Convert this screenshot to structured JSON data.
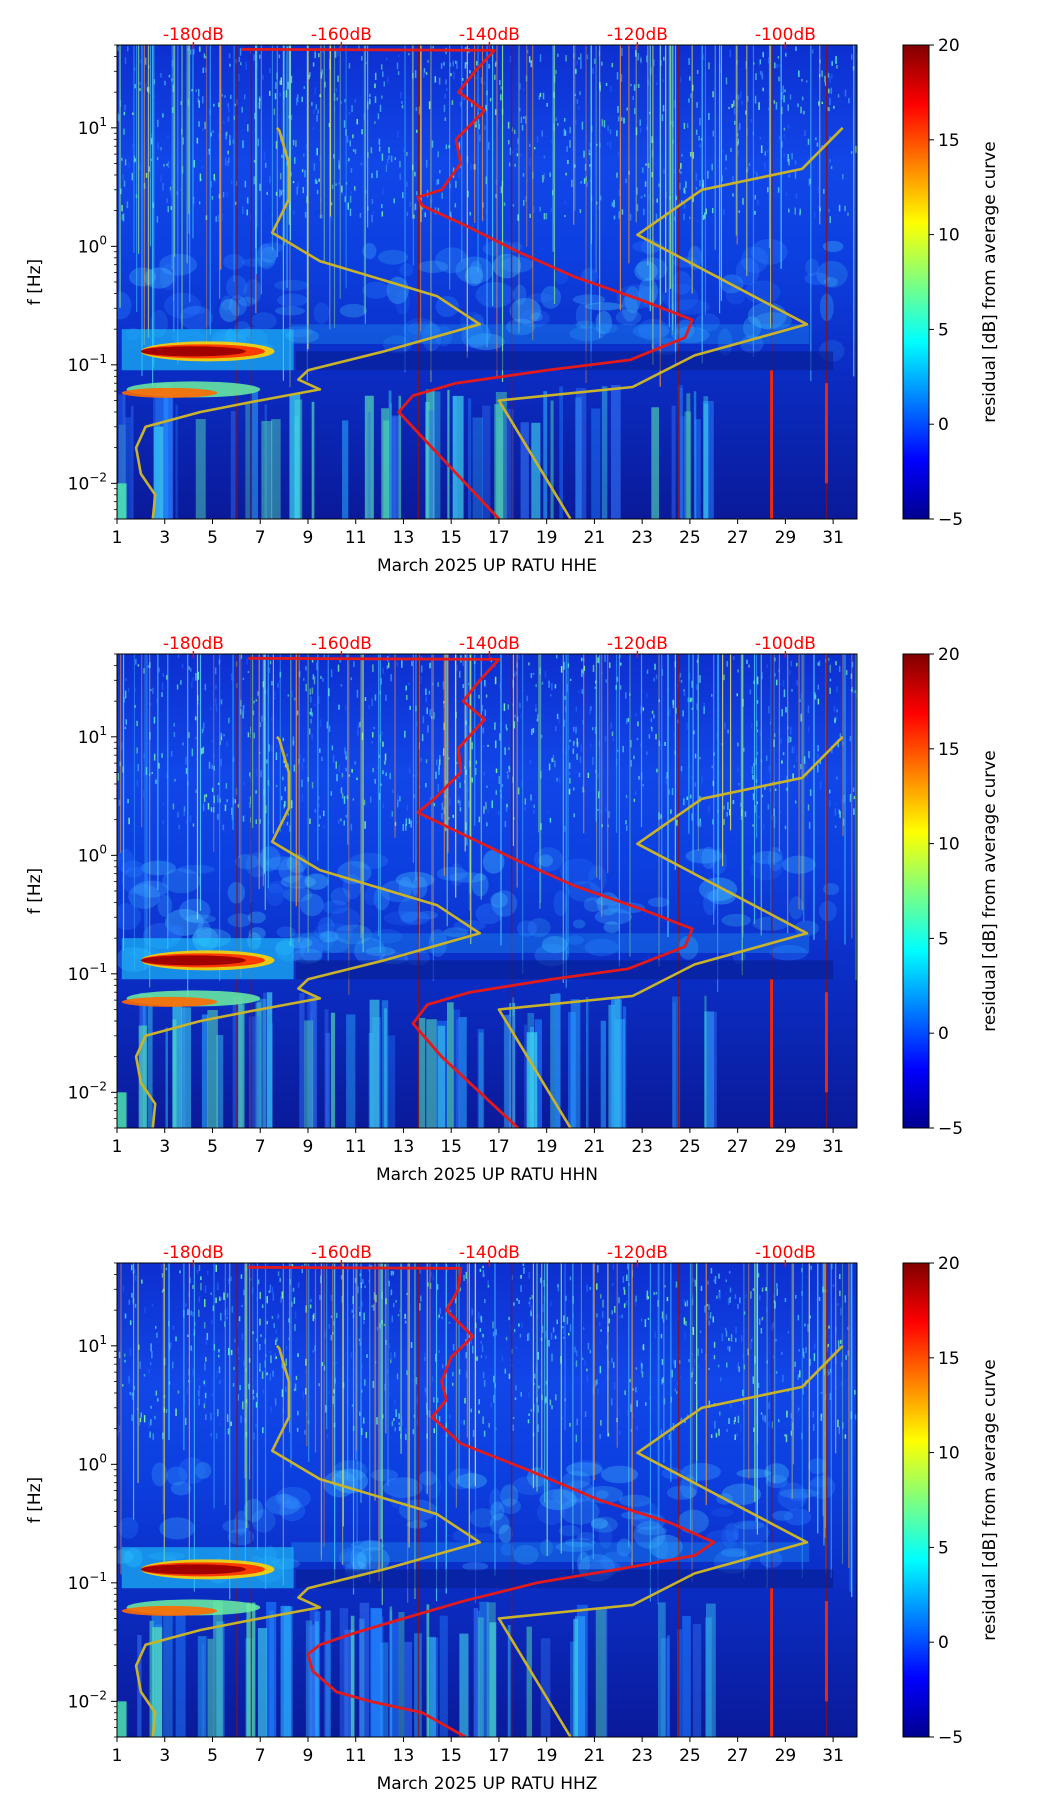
{
  "colors": {
    "cmap": [
      "#00008f",
      "#0000ff",
      "#007fff",
      "#00ffff",
      "#7fff7f",
      "#ffff00",
      "#ff7f00",
      "#ff0000",
      "#800000"
    ],
    "red_curve": "#e31a1c",
    "gold_curve": "#c9b32b",
    "db_label": "#ff0000"
  },
  "chart_data": [
    {
      "type": "heatmap",
      "station": "UP RATU",
      "channel": "HHE",
      "xlabel": "March 2025 UP RATU  HHE",
      "ylabel": "f [Hz]",
      "xlim": [
        1,
        32
      ],
      "ylim": [
        0.005,
        50
      ],
      "xticks": [
        "1",
        "3",
        "5",
        "7",
        "9",
        "11",
        "13",
        "15",
        "17",
        "19",
        "21",
        "23",
        "25",
        "27",
        "29",
        "31"
      ],
      "yticks": [
        {
          "value": 0.01,
          "base": "10",
          "exp": "−2"
        },
        {
          "value": 0.1,
          "base": "10",
          "exp": "−1"
        },
        {
          "value": 1,
          "base": "10",
          "exp": "0"
        },
        {
          "value": 10,
          "base": "10",
          "exp": "1"
        }
      ],
      "db_labels": [
        {
          "day": 4.2,
          "text": "-180dB"
        },
        {
          "day": 10.4,
          "text": "-160dB"
        },
        {
          "day": 16.6,
          "text": "-140dB"
        },
        {
          "day": 22.8,
          "text": "-120dB"
        },
        {
          "day": 29.0,
          "text": "-100dB"
        }
      ],
      "colorbar": {
        "label": "residual [dB] from average curve",
        "min": -5,
        "max": 20,
        "ticks": [
          "−5",
          "0",
          "5",
          "10",
          "15",
          "20"
        ]
      },
      "red_curve": [
        [
          17.0,
          0.005
        ],
        [
          15.6,
          0.01
        ],
        [
          14.2,
          0.02
        ],
        [
          12.8,
          0.04
        ],
        [
          13.4,
          0.055
        ],
        [
          15.2,
          0.07
        ],
        [
          19.0,
          0.09
        ],
        [
          22.5,
          0.11
        ],
        [
          24.8,
          0.17
        ],
        [
          25.1,
          0.24
        ],
        [
          23.0,
          0.35
        ],
        [
          20.2,
          0.55
        ],
        [
          17.8,
          0.9
        ],
        [
          15.6,
          1.5
        ],
        [
          13.8,
          2.2
        ],
        [
          13.6,
          2.6
        ],
        [
          14.6,
          3.0
        ],
        [
          15.4,
          5.0
        ],
        [
          15.2,
          8.0
        ],
        [
          16.4,
          14.0
        ],
        [
          15.3,
          20.0
        ],
        [
          16.0,
          30.0
        ],
        [
          16.8,
          45.0
        ],
        [
          6.2,
          46.0
        ]
      ],
      "gold_curve": [
        [
          2.5,
          0.005
        ],
        [
          2.6,
          0.008
        ],
        [
          2.0,
          0.012
        ],
        [
          1.8,
          0.02
        ],
        [
          2.2,
          0.03
        ],
        [
          4.5,
          0.04
        ],
        [
          6.5,
          0.048
        ],
        [
          9.5,
          0.062
        ],
        [
          8.6,
          0.075
        ],
        [
          9.0,
          0.09
        ],
        [
          12.2,
          0.13
        ],
        [
          16.2,
          0.22
        ],
        [
          14.4,
          0.38
        ],
        [
          9.5,
          0.75
        ],
        [
          7.5,
          1.3
        ],
        [
          8.2,
          2.5
        ],
        [
          8.2,
          5.0
        ],
        [
          7.8,
          9.5
        ],
        [
          7.7,
          10.0
        ]
      ],
      "gold_curve2": [
        [
          20.0,
          0.005
        ],
        [
          17.0,
          0.05
        ],
        [
          22.6,
          0.065
        ],
        [
          25.2,
          0.12
        ],
        [
          29.9,
          0.22
        ],
        [
          22.8,
          1.25
        ],
        [
          25.5,
          3.0
        ],
        [
          29.7,
          4.5
        ],
        [
          31.4,
          10.0
        ]
      ]
    },
    {
      "type": "heatmap",
      "station": "UP RATU",
      "channel": "HHN",
      "xlabel": "March 2025 UP RATU  HHN",
      "ylabel": "f [Hz]",
      "xlim": [
        1,
        32
      ],
      "ylim": [
        0.005,
        50
      ],
      "xticks": [
        "1",
        "3",
        "5",
        "7",
        "9",
        "11",
        "13",
        "15",
        "17",
        "19",
        "21",
        "23",
        "25",
        "27",
        "29",
        "31"
      ],
      "yticks": [
        {
          "value": 0.01,
          "base": "10",
          "exp": "−2"
        },
        {
          "value": 0.1,
          "base": "10",
          "exp": "−1"
        },
        {
          "value": 1,
          "base": "10",
          "exp": "0"
        },
        {
          "value": 10,
          "base": "10",
          "exp": "1"
        }
      ],
      "db_labels": [
        {
          "day": 4.2,
          "text": "-180dB"
        },
        {
          "day": 10.4,
          "text": "-160dB"
        },
        {
          "day": 16.6,
          "text": "-140dB"
        },
        {
          "day": 22.8,
          "text": "-120dB"
        },
        {
          "day": 29.0,
          "text": "-100dB"
        }
      ],
      "colorbar": {
        "label": "residual [dB] from average curve",
        "min": -5,
        "max": 20,
        "ticks": [
          "−5",
          "0",
          "5",
          "10",
          "15",
          "20"
        ]
      },
      "red_curve": [
        [
          17.8,
          0.005
        ],
        [
          16.2,
          0.01
        ],
        [
          14.6,
          0.02
        ],
        [
          13.4,
          0.038
        ],
        [
          14.0,
          0.055
        ],
        [
          15.8,
          0.07
        ],
        [
          19.2,
          0.09
        ],
        [
          22.4,
          0.11
        ],
        [
          24.8,
          0.17
        ],
        [
          25.1,
          0.24
        ],
        [
          23.0,
          0.35
        ],
        [
          20.2,
          0.55
        ],
        [
          17.8,
          0.9
        ],
        [
          15.5,
          1.5
        ],
        [
          13.6,
          2.3
        ],
        [
          14.3,
          3.0
        ],
        [
          15.4,
          5.0
        ],
        [
          15.3,
          8.0
        ],
        [
          16.4,
          14.0
        ],
        [
          15.5,
          20.0
        ],
        [
          16.2,
          30.0
        ],
        [
          17.0,
          45.0
        ],
        [
          6.5,
          46.0
        ]
      ],
      "gold_curve": [
        [
          2.5,
          0.005
        ],
        [
          2.6,
          0.008
        ],
        [
          2.0,
          0.012
        ],
        [
          1.8,
          0.02
        ],
        [
          2.2,
          0.03
        ],
        [
          4.5,
          0.04
        ],
        [
          6.5,
          0.048
        ],
        [
          9.5,
          0.062
        ],
        [
          8.6,
          0.075
        ],
        [
          9.0,
          0.09
        ],
        [
          12.2,
          0.13
        ],
        [
          16.2,
          0.22
        ],
        [
          14.4,
          0.38
        ],
        [
          9.5,
          0.75
        ],
        [
          7.5,
          1.3
        ],
        [
          8.2,
          2.5
        ],
        [
          8.2,
          5.0
        ],
        [
          7.8,
          9.5
        ],
        [
          7.7,
          10.0
        ]
      ],
      "gold_curve2": [
        [
          20.0,
          0.005
        ],
        [
          17.0,
          0.05
        ],
        [
          22.6,
          0.065
        ],
        [
          25.2,
          0.12
        ],
        [
          29.9,
          0.22
        ],
        [
          22.8,
          1.25
        ],
        [
          25.5,
          3.0
        ],
        [
          29.7,
          4.5
        ],
        [
          31.4,
          10.0
        ]
      ]
    },
    {
      "type": "heatmap",
      "station": "UP RATU",
      "channel": "HHZ",
      "xlabel": "March 2025 UP RATU  HHZ",
      "ylabel": "f [Hz]",
      "xlim": [
        1,
        32
      ],
      "ylim": [
        0.005,
        50
      ],
      "xticks": [
        "1",
        "3",
        "5",
        "7",
        "9",
        "11",
        "13",
        "15",
        "17",
        "19",
        "21",
        "23",
        "25",
        "27",
        "29",
        "31"
      ],
      "yticks": [
        {
          "value": 0.01,
          "base": "10",
          "exp": "−2"
        },
        {
          "value": 0.1,
          "base": "10",
          "exp": "−1"
        },
        {
          "value": 1,
          "base": "10",
          "exp": "0"
        },
        {
          "value": 10,
          "base": "10",
          "exp": "1"
        }
      ],
      "db_labels": [
        {
          "day": 4.2,
          "text": "-180dB"
        },
        {
          "day": 10.4,
          "text": "-160dB"
        },
        {
          "day": 16.6,
          "text": "-140dB"
        },
        {
          "day": 22.8,
          "text": "-120dB"
        },
        {
          "day": 29.0,
          "text": "-100dB"
        }
      ],
      "colorbar": {
        "label": "residual [dB] from average curve",
        "min": -5,
        "max": 20,
        "ticks": [
          "−5",
          "0",
          "5",
          "10",
          "15",
          "20"
        ]
      },
      "red_curve": [
        [
          15.6,
          0.005
        ],
        [
          13.8,
          0.008
        ],
        [
          11.6,
          0.01
        ],
        [
          10.2,
          0.012
        ],
        [
          9.2,
          0.018
        ],
        [
          9.0,
          0.025
        ],
        [
          9.5,
          0.03
        ],
        [
          11.0,
          0.038
        ],
        [
          13.0,
          0.05
        ],
        [
          15.5,
          0.07
        ],
        [
          18.6,
          0.1
        ],
        [
          22.0,
          0.13
        ],
        [
          25.2,
          0.17
        ],
        [
          26.0,
          0.22
        ],
        [
          24.2,
          0.32
        ],
        [
          21.2,
          0.5
        ],
        [
          18.2,
          0.9
        ],
        [
          15.4,
          1.5
        ],
        [
          14.2,
          2.5
        ],
        [
          14.8,
          3.5
        ],
        [
          14.6,
          5.0
        ],
        [
          15.0,
          8.0
        ],
        [
          15.9,
          12.0
        ],
        [
          14.8,
          20.0
        ],
        [
          15.3,
          30.0
        ],
        [
          15.4,
          45.0
        ],
        [
          6.5,
          46.0
        ]
      ],
      "gold_curve": [
        [
          2.5,
          0.005
        ],
        [
          2.6,
          0.008
        ],
        [
          2.0,
          0.012
        ],
        [
          1.8,
          0.02
        ],
        [
          2.2,
          0.03
        ],
        [
          4.5,
          0.04
        ],
        [
          6.5,
          0.048
        ],
        [
          9.5,
          0.062
        ],
        [
          8.6,
          0.075
        ],
        [
          9.0,
          0.09
        ],
        [
          12.2,
          0.13
        ],
        [
          16.2,
          0.22
        ],
        [
          14.4,
          0.38
        ],
        [
          9.5,
          0.75
        ],
        [
          7.5,
          1.3
        ],
        [
          8.2,
          2.5
        ],
        [
          8.2,
          5.0
        ],
        [
          7.8,
          9.5
        ],
        [
          7.7,
          10.0
        ]
      ],
      "gold_curve2": [
        [
          20.0,
          0.005
        ],
        [
          17.0,
          0.05
        ],
        [
          22.6,
          0.065
        ],
        [
          25.2,
          0.12
        ],
        [
          29.9,
          0.22
        ],
        [
          22.8,
          1.25
        ],
        [
          25.5,
          3.0
        ],
        [
          29.7,
          4.5
        ],
        [
          31.4,
          10.0
        ]
      ]
    }
  ]
}
